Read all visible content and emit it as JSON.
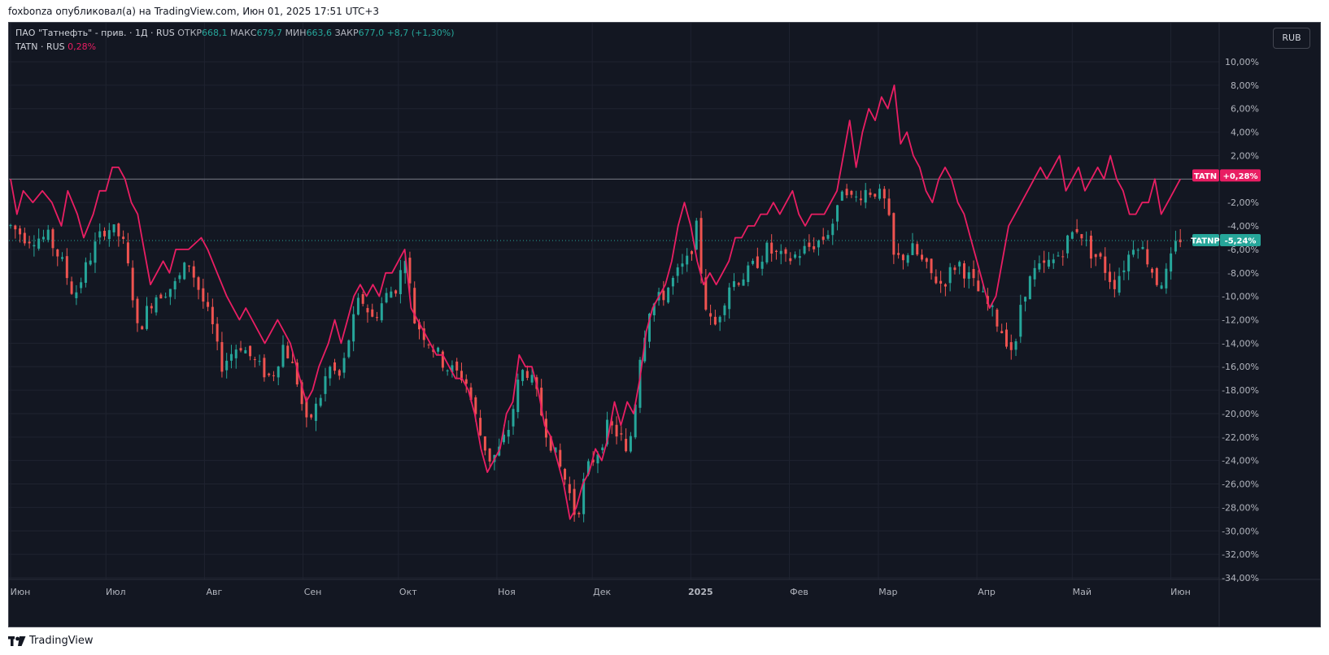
{
  "header": {
    "text": "foxbonza опубликовал(а) на TradingView.com, Июн 01, 2025 17:51 UTC+3"
  },
  "legend": {
    "main_title": "ПАО \"Татнефть\" - прив. · 1Д · RUS",
    "open_label": "ОТКР",
    "open_value": "668,1",
    "high_label": "МАКС",
    "high_value": "679,7",
    "low_label": "МИН",
    "low_value": "663,6",
    "close_label": "ЗАКР",
    "close_value": "677,0",
    "change_value": "+8,7 (+1,30%)",
    "compare_title": "TATN · RUS",
    "compare_value": "0,28%"
  },
  "currency": "RUB",
  "footer": {
    "brand": "TradingView"
  },
  "colors": {
    "background": "#131722",
    "up": "#26a69a",
    "down": "#ef5350",
    "compare_line": "#e91e63",
    "grid": "#1f2330",
    "text": "#d1d4dc"
  },
  "chart_data": {
    "type": "candlestick_with_line_comparison",
    "y_axis": {
      "unit": "percent",
      "min": -34,
      "max": 10,
      "step": 2
    },
    "y_ticks": [
      "10,00%",
      "8,00%",
      "6,00%",
      "4,00%",
      "2,00%",
      "-2,00%",
      "-4,00%",
      "-6,00%",
      "-8,00%",
      "-10,00%",
      "-12,00%",
      "-14,00%",
      "-16,00%",
      "-18,00%",
      "-20,00%",
      "-22,00%",
      "-24,00%",
      "-26,00%",
      "-28,00%",
      "-30,00%",
      "-32,00%",
      "-34,00%"
    ],
    "x_ticks": [
      {
        "label": "Июн",
        "day": 0
      },
      {
        "label": "Июл",
        "day": 30
      },
      {
        "label": "Авг",
        "day": 61
      },
      {
        "label": "Сен",
        "day": 92
      },
      {
        "label": "Окт",
        "day": 122
      },
      {
        "label": "Ноя",
        "day": 153
      },
      {
        "label": "Дек",
        "day": 183
      },
      {
        "label": "2025",
        "day": 214,
        "bold": true
      },
      {
        "label": "Фев",
        "day": 245
      },
      {
        "label": "Мар",
        "day": 273
      },
      {
        "label": "Апр",
        "day": 304
      },
      {
        "label": "Май",
        "day": 334
      },
      {
        "label": "Июн",
        "day": 365
      }
    ],
    "x_range_days": [
      0,
      370
    ],
    "zero_line_value": 0,
    "series": [
      {
        "name": "TATNP",
        "kind": "candles",
        "last_value": -5.24,
        "last_label": "-5,24%",
        "anchors": [
          [
            0,
            -4
          ],
          [
            5,
            -5
          ],
          [
            12,
            -5
          ],
          [
            16,
            -7
          ],
          [
            20,
            -10
          ],
          [
            26,
            -6
          ],
          [
            30,
            -4
          ],
          [
            35,
            -5
          ],
          [
            38,
            -9
          ],
          [
            40,
            -13
          ],
          [
            45,
            -10
          ],
          [
            52,
            -9
          ],
          [
            56,
            -7
          ],
          [
            60,
            -10
          ],
          [
            64,
            -13
          ],
          [
            66,
            -16
          ],
          [
            72,
            -14
          ],
          [
            78,
            -16
          ],
          [
            82,
            -17
          ],
          [
            86,
            -14
          ],
          [
            90,
            -17
          ],
          [
            93,
            -21
          ],
          [
            97,
            -19
          ],
          [
            100,
            -16
          ],
          [
            104,
            -17
          ],
          [
            106,
            -14
          ],
          [
            110,
            -10
          ],
          [
            114,
            -12
          ],
          [
            118,
            -10
          ],
          [
            122,
            -9
          ],
          [
            124,
            -6
          ],
          [
            127,
            -12
          ],
          [
            132,
            -14
          ],
          [
            137,
            -16
          ],
          [
            143,
            -17
          ],
          [
            145,
            -19
          ],
          [
            148,
            -22
          ],
          [
            151,
            -24
          ],
          [
            154,
            -23
          ],
          [
            157,
            -21
          ],
          [
            160,
            -17
          ],
          [
            162,
            -16
          ],
          [
            165,
            -18
          ],
          [
            168,
            -21
          ],
          [
            172,
            -24
          ],
          [
            175,
            -26
          ],
          [
            178,
            -29
          ],
          [
            181,
            -25
          ],
          [
            185,
            -23
          ],
          [
            188,
            -21
          ],
          [
            192,
            -22
          ],
          [
            194,
            -24
          ],
          [
            197,
            -18
          ],
          [
            198,
            -15
          ],
          [
            201,
            -11
          ],
          [
            205,
            -10
          ],
          [
            210,
            -8
          ],
          [
            213,
            -7
          ],
          [
            216,
            -4
          ],
          [
            218,
            -10
          ],
          [
            221,
            -13
          ],
          [
            226,
            -9
          ],
          [
            232,
            -8
          ],
          [
            238,
            -6
          ],
          [
            244,
            -7
          ],
          [
            250,
            -6
          ],
          [
            256,
            -5
          ],
          [
            260,
            -3
          ],
          [
            262,
            0
          ],
          [
            265,
            -2
          ],
          [
            268,
            -1
          ],
          [
            272,
            -1
          ],
          [
            275,
            -2
          ],
          [
            276,
            -3
          ],
          [
            278,
            -7
          ],
          [
            284,
            -6
          ],
          [
            289,
            -8
          ],
          [
            293,
            -9
          ],
          [
            298,
            -7
          ],
          [
            303,
            -9
          ],
          [
            308,
            -11
          ],
          [
            312,
            -13
          ],
          [
            316,
            -15
          ],
          [
            318,
            -10
          ],
          [
            322,
            -8
          ],
          [
            328,
            -7
          ],
          [
            331,
            -6
          ],
          [
            333,
            -5
          ],
          [
            336,
            -4
          ],
          [
            339,
            -6
          ],
          [
            343,
            -7
          ],
          [
            347,
            -9
          ],
          [
            351,
            -7
          ],
          [
            354,
            -5
          ],
          [
            358,
            -7
          ],
          [
            361,
            -9
          ],
          [
            364,
            -8
          ],
          [
            366,
            -6
          ],
          [
            368,
            -5
          ]
        ]
      },
      {
        "name": "TATN",
        "kind": "line",
        "last_value": 0.28,
        "last_label": "+0,28%",
        "points": [
          [
            0,
            0
          ],
          [
            2,
            -3
          ],
          [
            4,
            -1
          ],
          [
            7,
            -2
          ],
          [
            10,
            -1
          ],
          [
            13,
            -2
          ],
          [
            16,
            -4
          ],
          [
            18,
            -1
          ],
          [
            21,
            -3
          ],
          [
            23,
            -5
          ],
          [
            26,
            -3
          ],
          [
            28,
            -1
          ],
          [
            30,
            -1
          ],
          [
            32,
            1
          ],
          [
            34,
            1
          ],
          [
            36,
            0
          ],
          [
            38,
            -2
          ],
          [
            40,
            -3
          ],
          [
            42,
            -6
          ],
          [
            44,
            -9
          ],
          [
            46,
            -8
          ],
          [
            48,
            -7
          ],
          [
            50,
            -8
          ],
          [
            52,
            -6
          ],
          [
            56,
            -6
          ],
          [
            60,
            -5
          ],
          [
            62,
            -6
          ],
          [
            65,
            -8
          ],
          [
            68,
            -10
          ],
          [
            70,
            -11
          ],
          [
            72,
            -12
          ],
          [
            74,
            -11
          ],
          [
            76,
            -12
          ],
          [
            78,
            -13
          ],
          [
            80,
            -14
          ],
          [
            82,
            -13
          ],
          [
            84,
            -12
          ],
          [
            86,
            -13
          ],
          [
            88,
            -14
          ],
          [
            91,
            -17
          ],
          [
            93,
            -19
          ],
          [
            95,
            -18
          ],
          [
            97,
            -16
          ],
          [
            100,
            -14
          ],
          [
            102,
            -12
          ],
          [
            104,
            -14
          ],
          [
            106,
            -12
          ],
          [
            108,
            -10
          ],
          [
            110,
            -9
          ],
          [
            112,
            -10
          ],
          [
            114,
            -9
          ],
          [
            116,
            -10
          ],
          [
            118,
            -8
          ],
          [
            120,
            -8
          ],
          [
            122,
            -7
          ],
          [
            124,
            -6
          ],
          [
            126,
            -11
          ],
          [
            128,
            -12
          ],
          [
            130,
            -13
          ],
          [
            132,
            -14
          ],
          [
            134,
            -15
          ],
          [
            136,
            -15
          ],
          [
            138,
            -16
          ],
          [
            140,
            -17
          ],
          [
            142,
            -17
          ],
          [
            144,
            -18
          ],
          [
            146,
            -20
          ],
          [
            148,
            -23
          ],
          [
            150,
            -25
          ],
          [
            152,
            -24
          ],
          [
            154,
            -23
          ],
          [
            156,
            -20
          ],
          [
            158,
            -19
          ],
          [
            160,
            -15
          ],
          [
            162,
            -16
          ],
          [
            164,
            -16
          ],
          [
            166,
            -18
          ],
          [
            168,
            -21
          ],
          [
            170,
            -22
          ],
          [
            172,
            -24
          ],
          [
            174,
            -26
          ],
          [
            176,
            -29
          ],
          [
            178,
            -28
          ],
          [
            180,
            -26
          ],
          [
            182,
            -25
          ],
          [
            184,
            -23
          ],
          [
            186,
            -24
          ],
          [
            188,
            -22
          ],
          [
            190,
            -19
          ],
          [
            192,
            -21
          ],
          [
            194,
            -19
          ],
          [
            196,
            -20
          ],
          [
            198,
            -17
          ],
          [
            200,
            -13
          ],
          [
            202,
            -11
          ],
          [
            204,
            -10
          ],
          [
            206,
            -9
          ],
          [
            208,
            -7
          ],
          [
            210,
            -4
          ],
          [
            212,
            -2
          ],
          [
            214,
            -4
          ],
          [
            216,
            -7
          ],
          [
            218,
            -9
          ],
          [
            220,
            -8
          ],
          [
            222,
            -9
          ],
          [
            224,
            -8
          ],
          [
            226,
            -7
          ],
          [
            228,
            -5
          ],
          [
            230,
            -5
          ],
          [
            232,
            -4
          ],
          [
            234,
            -4
          ],
          [
            236,
            -3
          ],
          [
            238,
            -3
          ],
          [
            240,
            -2
          ],
          [
            242,
            -3
          ],
          [
            244,
            -2
          ],
          [
            246,
            -1
          ],
          [
            248,
            -3
          ],
          [
            250,
            -4
          ],
          [
            252,
            -3
          ],
          [
            256,
            -3
          ],
          [
            258,
            -2
          ],
          [
            260,
            -1
          ],
          [
            262,
            2
          ],
          [
            264,
            5
          ],
          [
            266,
            1
          ],
          [
            268,
            4
          ],
          [
            270,
            6
          ],
          [
            272,
            5
          ],
          [
            274,
            7
          ],
          [
            276,
            6
          ],
          [
            278,
            8
          ],
          [
            280,
            3
          ],
          [
            282,
            4
          ],
          [
            284,
            2
          ],
          [
            286,
            1
          ],
          [
            288,
            -1
          ],
          [
            290,
            -2
          ],
          [
            292,
            0
          ],
          [
            294,
            1
          ],
          [
            296,
            0
          ],
          [
            298,
            -2
          ],
          [
            300,
            -3
          ],
          [
            302,
            -5
          ],
          [
            304,
            -7
          ],
          [
            306,
            -9
          ],
          [
            308,
            -11
          ],
          [
            310,
            -10
          ],
          [
            312,
            -7
          ],
          [
            314,
            -4
          ],
          [
            316,
            -3
          ],
          [
            318,
            -2
          ],
          [
            320,
            -1
          ],
          [
            322,
            0
          ],
          [
            324,
            1
          ],
          [
            326,
            0
          ],
          [
            328,
            1
          ],
          [
            330,
            2
          ],
          [
            332,
            -1
          ],
          [
            334,
            0
          ],
          [
            336,
            1
          ],
          [
            338,
            -1
          ],
          [
            340,
            0
          ],
          [
            342,
            1
          ],
          [
            344,
            0
          ],
          [
            346,
            2
          ],
          [
            348,
            0
          ],
          [
            350,
            -1
          ],
          [
            352,
            -3
          ],
          [
            354,
            -3
          ],
          [
            356,
            -2
          ],
          [
            358,
            -2
          ],
          [
            360,
            0
          ],
          [
            362,
            -3
          ],
          [
            364,
            -2
          ],
          [
            366,
            -1
          ],
          [
            368,
            0
          ]
        ]
      }
    ]
  }
}
